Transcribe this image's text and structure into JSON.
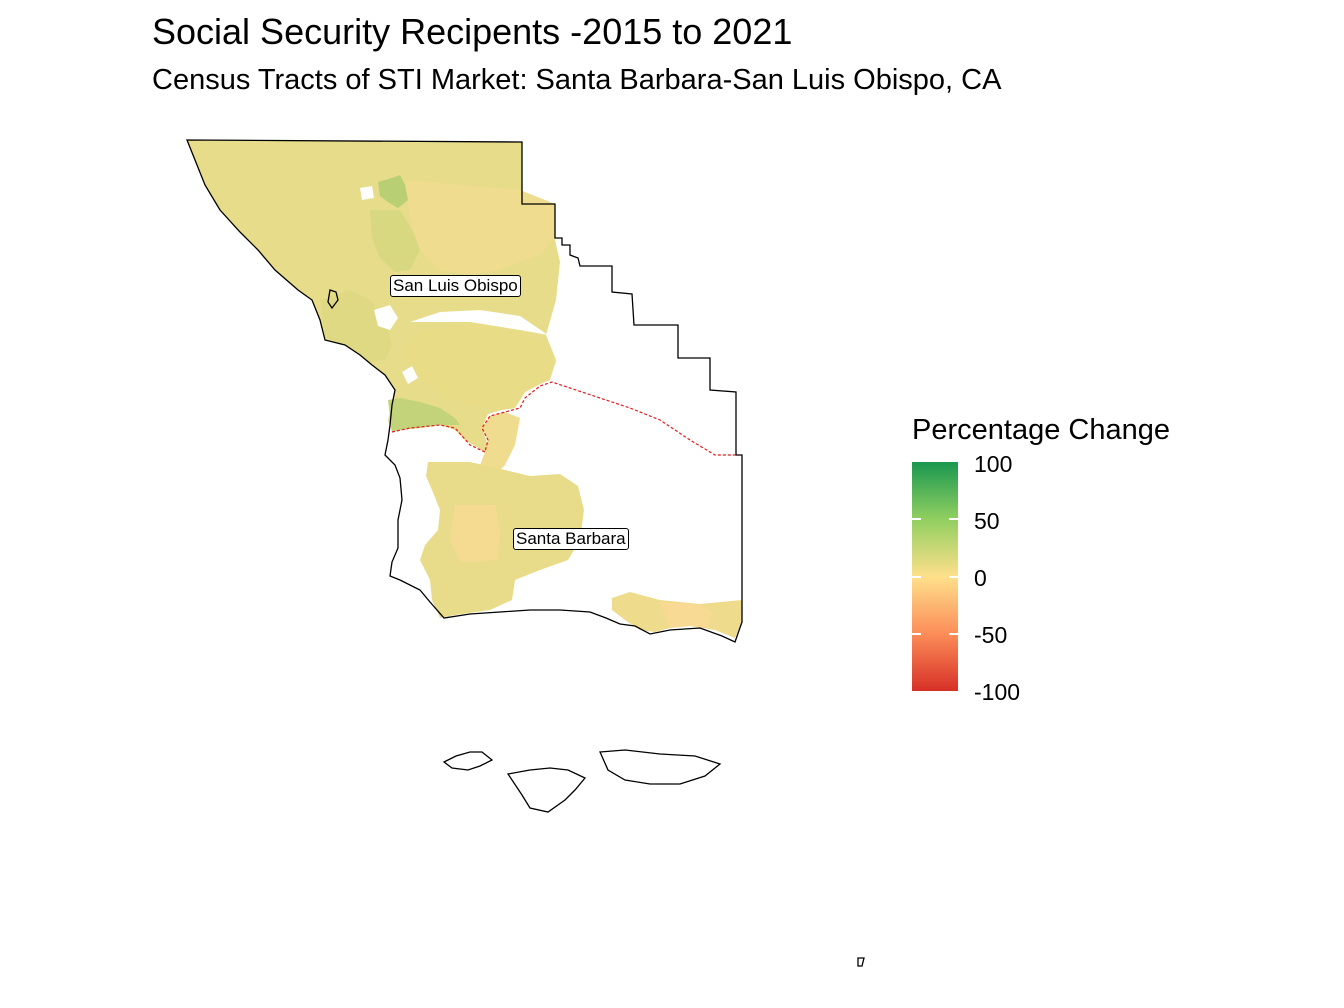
{
  "title": "Social Security Recipents -2015 to 2021",
  "subtitle": "Census Tracts of STI Market: Santa Barbara-San Luis Obispo, CA",
  "map_labels": {
    "county_north": "San Luis Obispo",
    "county_south": "Santa Barbara"
  },
  "legend": {
    "title": "Percentage Change",
    "ticks": [
      "100",
      "50",
      "0",
      "-50",
      "-100"
    ],
    "range": [
      -100,
      100
    ],
    "colors": {
      "high": "#1a9850",
      "mid_high": "#91cf60",
      "mid": "#fee08b",
      "mid_low": "#fc8d59",
      "low": "#d73027"
    }
  },
  "county_boundary_color": "#e41a1c",
  "outline_color": "#000000"
}
